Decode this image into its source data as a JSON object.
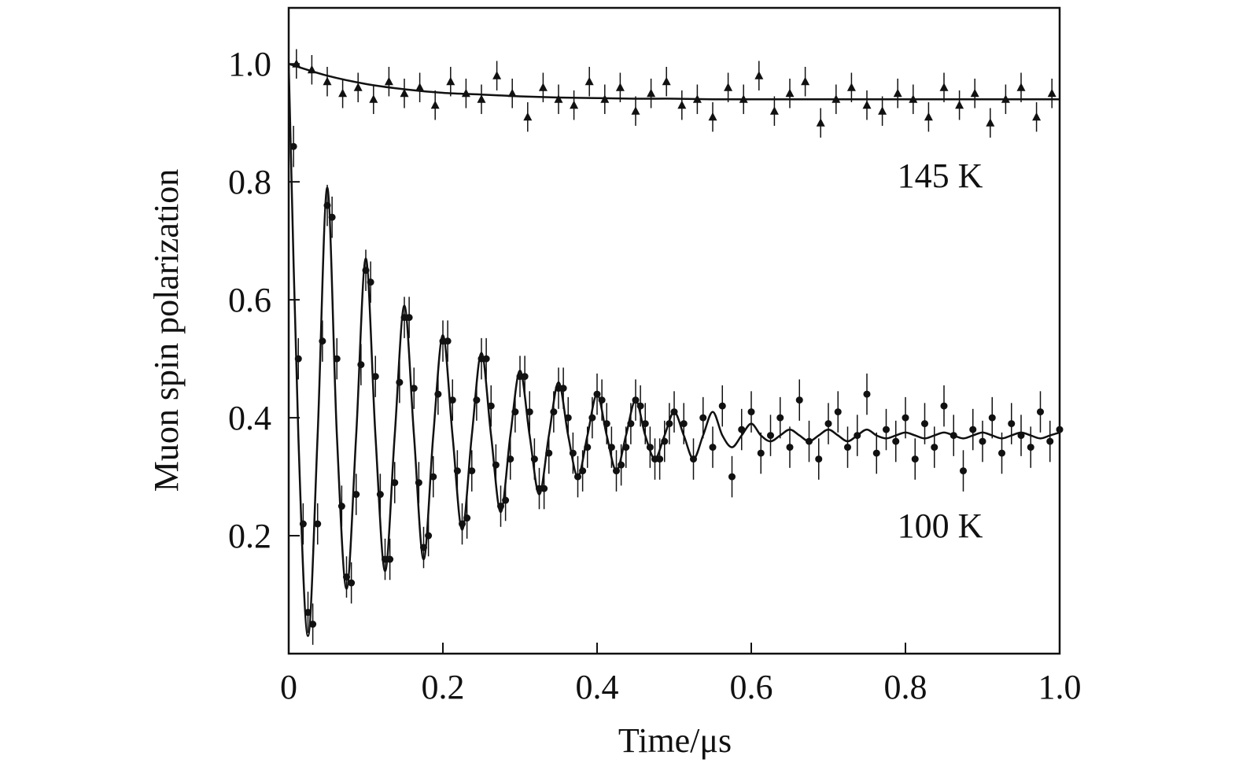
{
  "chart_data": {
    "type": "scatter",
    "x_label": "Time/μs",
    "y_label": "Muon spin polarization",
    "xlim": [
      0,
      1
    ],
    "ylim": [
      0,
      1.095
    ],
    "xticks": [
      0,
      0.2,
      0.4,
      0.6,
      0.8,
      {
        "value": 1,
        "label": "1.0"
      }
    ],
    "yticks": [
      0.2,
      0.4,
      0.6,
      0.8,
      {
        "value": 1,
        "label": "1.0"
      }
    ],
    "series": [
      {
        "name": "145 K",
        "marker": "triangle",
        "color": "#111111",
        "error": 0.025,
        "x": [
          0.01,
          0.03,
          0.05,
          0.07,
          0.09,
          0.11,
          0.13,
          0.15,
          0.17,
          0.19,
          0.21,
          0.23,
          0.25,
          0.27,
          0.29,
          0.31,
          0.33,
          0.35,
          0.37,
          0.39,
          0.41,
          0.43,
          0.45,
          0.47,
          0.49,
          0.51,
          0.53,
          0.55,
          0.57,
          0.59,
          0.61,
          0.63,
          0.65,
          0.67,
          0.69,
          0.71,
          0.73,
          0.75,
          0.77,
          0.79,
          0.81,
          0.83,
          0.85,
          0.87,
          0.89,
          0.91,
          0.93,
          0.95,
          0.97,
          0.99
        ],
        "values": [
          1.0,
          0.99,
          0.97,
          0.95,
          0.96,
          0.94,
          0.97,
          0.95,
          0.96,
          0.93,
          0.97,
          0.95,
          0.94,
          0.98,
          0.95,
          0.91,
          0.96,
          0.94,
          0.93,
          0.97,
          0.94,
          0.96,
          0.92,
          0.95,
          0.97,
          0.93,
          0.94,
          0.91,
          0.96,
          0.94,
          0.98,
          0.92,
          0.95,
          0.97,
          0.9,
          0.94,
          0.96,
          0.93,
          0.92,
          0.95,
          0.94,
          0.91,
          0.96,
          0.93,
          0.95,
          0.9,
          0.94,
          0.96,
          0.91,
          0.95
        ],
        "fit": {
          "x": [
            0,
            0.05,
            0.1,
            0.15,
            0.2,
            0.25,
            0.3,
            0.35,
            0.4,
            0.45,
            0.5,
            0.55,
            0.6,
            0.65,
            0.7,
            0.75,
            0.8,
            0.85,
            0.9,
            0.95,
            1.0
          ],
          "values": [
            1.0,
            0.98,
            0.966,
            0.957,
            0.951,
            0.948,
            0.945,
            0.943,
            0.942,
            0.941,
            0.941,
            0.94,
            0.94,
            0.94,
            0.94,
            0.94,
            0.94,
            0.94,
            0.94,
            0.94,
            0.94
          ]
        }
      },
      {
        "name": "100 K",
        "marker": "circle",
        "color": "#111111",
        "error": 0.035,
        "x": [
          0.00625,
          0.0125,
          0.01875,
          0.025,
          0.03125,
          0.0375,
          0.04375,
          0.05,
          0.05625,
          0.0625,
          0.06875,
          0.075,
          0.08125,
          0.0875,
          0.09375,
          0.1,
          0.10625,
          0.1125,
          0.11875,
          0.125,
          0.13125,
          0.1375,
          0.14375,
          0.15,
          0.15625,
          0.1625,
          0.16875,
          0.175,
          0.18125,
          0.1875,
          0.19375,
          0.2,
          0.20625,
          0.2125,
          0.21875,
          0.225,
          0.23125,
          0.2375,
          0.24375,
          0.25,
          0.25625,
          0.2625,
          0.26875,
          0.275,
          0.28125,
          0.2875,
          0.29375,
          0.3,
          0.30625,
          0.3125,
          0.31875,
          0.325,
          0.33125,
          0.3375,
          0.34375,
          0.35,
          0.35625,
          0.3625,
          0.36875,
          0.375,
          0.38125,
          0.3875,
          0.39375,
          0.4,
          0.40625,
          0.4125,
          0.41875,
          0.425,
          0.43125,
          0.4375,
          0.44375,
          0.45,
          0.45625,
          0.4625,
          0.46875,
          0.475,
          0.48125,
          0.4875,
          0.49375,
          0.5,
          0.5125,
          0.525,
          0.5375,
          0.55,
          0.5625,
          0.575,
          0.5875,
          0.6,
          0.6125,
          0.625,
          0.6375,
          0.65,
          0.6625,
          0.675,
          0.6875,
          0.7,
          0.7125,
          0.725,
          0.7375,
          0.75,
          0.7625,
          0.775,
          0.7875,
          0.8,
          0.8125,
          0.825,
          0.8375,
          0.85,
          0.8625,
          0.875,
          0.8875,
          0.9,
          0.9125,
          0.925,
          0.9375,
          0.95,
          0.9625,
          0.975,
          0.9875,
          1.0
        ],
        "values": [
          0.86,
          0.5,
          0.22,
          0.07,
          0.05,
          0.22,
          0.53,
          0.76,
          0.74,
          0.5,
          0.25,
          0.13,
          0.12,
          0.27,
          0.49,
          0.65,
          0.63,
          0.47,
          0.27,
          0.16,
          0.16,
          0.29,
          0.46,
          0.57,
          0.57,
          0.45,
          0.29,
          0.18,
          0.2,
          0.3,
          0.44,
          0.53,
          0.53,
          0.43,
          0.31,
          0.22,
          0.23,
          0.31,
          0.43,
          0.5,
          0.5,
          0.42,
          0.32,
          0.25,
          0.26,
          0.33,
          0.41,
          0.47,
          0.47,
          0.41,
          0.33,
          0.28,
          0.28,
          0.34,
          0.41,
          0.45,
          0.45,
          0.4,
          0.34,
          0.3,
          0.31,
          0.35,
          0.4,
          0.44,
          0.43,
          0.39,
          0.35,
          0.31,
          0.32,
          0.35,
          0.39,
          0.43,
          0.42,
          0.39,
          0.35,
          0.33,
          0.33,
          0.36,
          0.39,
          0.41,
          0.39,
          0.33,
          0.4,
          0.35,
          0.42,
          0.3,
          0.38,
          0.41,
          0.34,
          0.37,
          0.4,
          0.35,
          0.43,
          0.36,
          0.33,
          0.39,
          0.41,
          0.35,
          0.37,
          0.44,
          0.34,
          0.38,
          0.36,
          0.4,
          0.33,
          0.39,
          0.35,
          0.42,
          0.37,
          0.31,
          0.38,
          0.36,
          0.4,
          0.34,
          0.39,
          0.37,
          0.35,
          0.41,
          0.36,
          0.38
        ],
        "fit": {
          "x": [
            0,
            0.0125,
            0.025,
            0.0375,
            0.05,
            0.0625,
            0.075,
            0.0875,
            0.1,
            0.1125,
            0.125,
            0.1375,
            0.15,
            0.1625,
            0.175,
            0.1875,
            0.2,
            0.2125,
            0.225,
            0.2375,
            0.25,
            0.2625,
            0.275,
            0.2875,
            0.3,
            0.3125,
            0.325,
            0.3375,
            0.35,
            0.3625,
            0.375,
            0.3875,
            0.4,
            0.4125,
            0.425,
            0.4375,
            0.45,
            0.4625,
            0.475,
            0.4875,
            0.5,
            0.5125,
            0.525,
            0.5375,
            0.55,
            0.5625,
            0.575,
            0.5875,
            0.6,
            0.6125,
            0.625,
            0.6375,
            0.65,
            0.6625,
            0.675,
            0.6875,
            0.7,
            0.7125,
            0.725,
            0.7375,
            0.75,
            0.7625,
            0.775,
            0.7875,
            0.8,
            0.8125,
            0.825,
            0.8375,
            0.85,
            0.8625,
            0.875,
            0.8875,
            0.9,
            0.9125,
            0.925,
            0.9375,
            0.95,
            0.9625,
            0.975,
            0.9875,
            1.0
          ],
          "values": [
            1.0,
            0.37,
            0.03,
            0.37,
            0.79,
            0.37,
            0.11,
            0.37,
            0.67,
            0.37,
            0.14,
            0.37,
            0.59,
            0.37,
            0.16,
            0.37,
            0.54,
            0.37,
            0.21,
            0.37,
            0.51,
            0.37,
            0.24,
            0.37,
            0.48,
            0.37,
            0.27,
            0.37,
            0.46,
            0.37,
            0.3,
            0.37,
            0.44,
            0.37,
            0.31,
            0.37,
            0.43,
            0.37,
            0.33,
            0.37,
            0.41,
            0.37,
            0.33,
            0.37,
            0.41,
            0.37,
            0.35,
            0.37,
            0.39,
            0.37,
            0.36,
            0.37,
            0.38,
            0.37,
            0.36,
            0.37,
            0.38,
            0.37,
            0.36,
            0.37,
            0.38,
            0.37,
            0.365,
            0.37,
            0.375,
            0.37,
            0.365,
            0.37,
            0.375,
            0.37,
            0.365,
            0.37,
            0.375,
            0.37,
            0.365,
            0.37,
            0.375,
            0.37,
            0.365,
            0.37,
            0.375
          ]
        }
      }
    ]
  }
}
